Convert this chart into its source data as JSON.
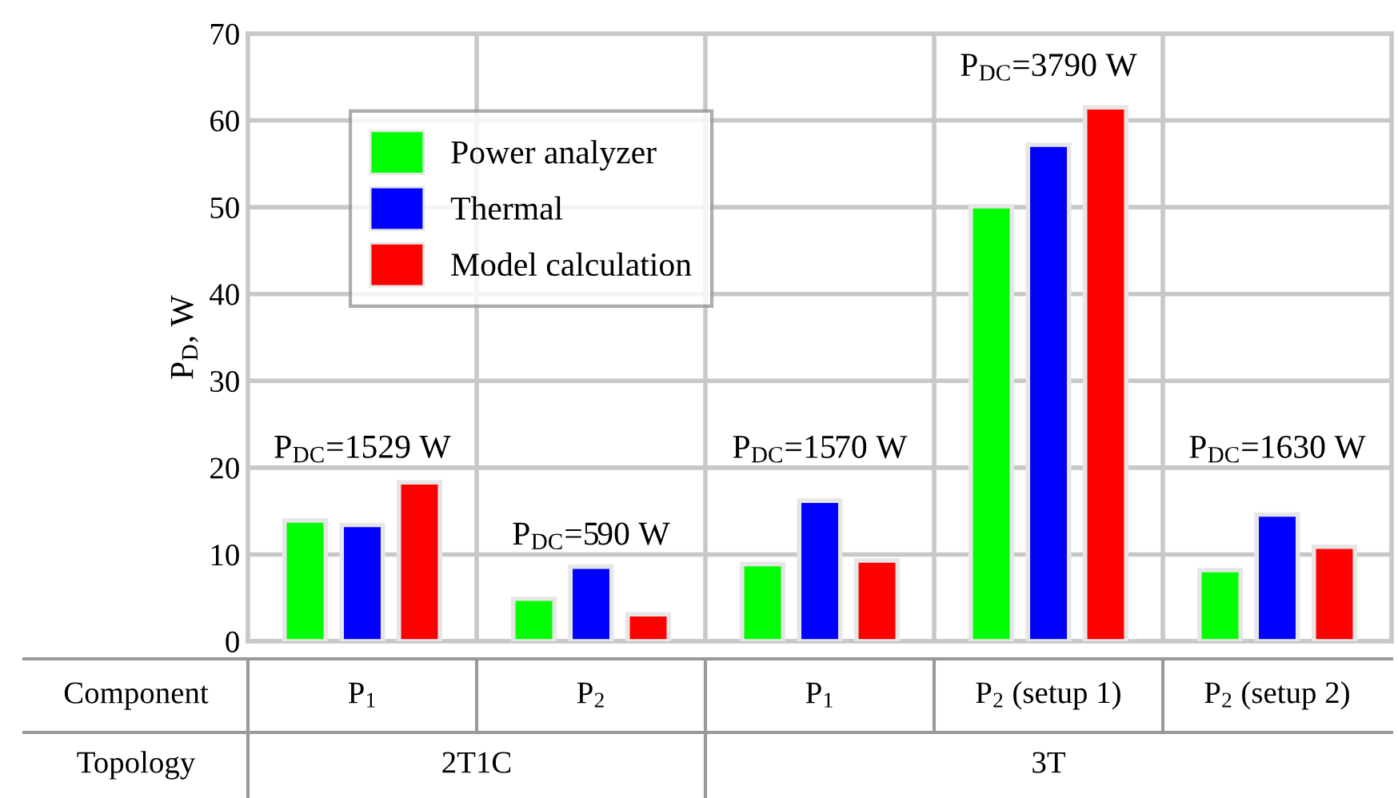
{
  "chart_data": {
    "type": "bar",
    "ylabel": "P$_{D}$, W",
    "categories": [
      "P$_{1}$",
      "P$_{2}$",
      "P$_{1}$",
      "P$_{2}$ (setup 1)",
      "P$_{2}$ (setup 2)"
    ],
    "series": [
      {
        "name": "Power analyzer",
        "color": "#00ff00",
        "values": [
          13.9,
          4.9,
          8.9,
          50.1,
          8.2
        ]
      },
      {
        "name": "Thermal",
        "color": "#0000ff",
        "values": [
          13.4,
          8.6,
          16.2,
          57.2,
          14.6
        ]
      },
      {
        "name": "Model calculation",
        "color": "#ff0000",
        "values": [
          18.3,
          3.1,
          9.3,
          61.5,
          10.9
        ]
      }
    ],
    "ylim": [
      0,
      70
    ],
    "yticks": [
      0,
      10,
      20,
      30,
      40,
      50,
      60,
      70
    ],
    "grid": true,
    "legend": "top left",
    "annotations": [
      "P$_{DC}$=1529 W",
      "P$_{DC}$=590 W",
      "P$_{DC}$=1570 W",
      "P$_{DC}$=3790 W",
      "P$_{DC}$=1630 W",
      "Component",
      "Topology",
      "2T1C",
      "3T"
    ]
  }
}
